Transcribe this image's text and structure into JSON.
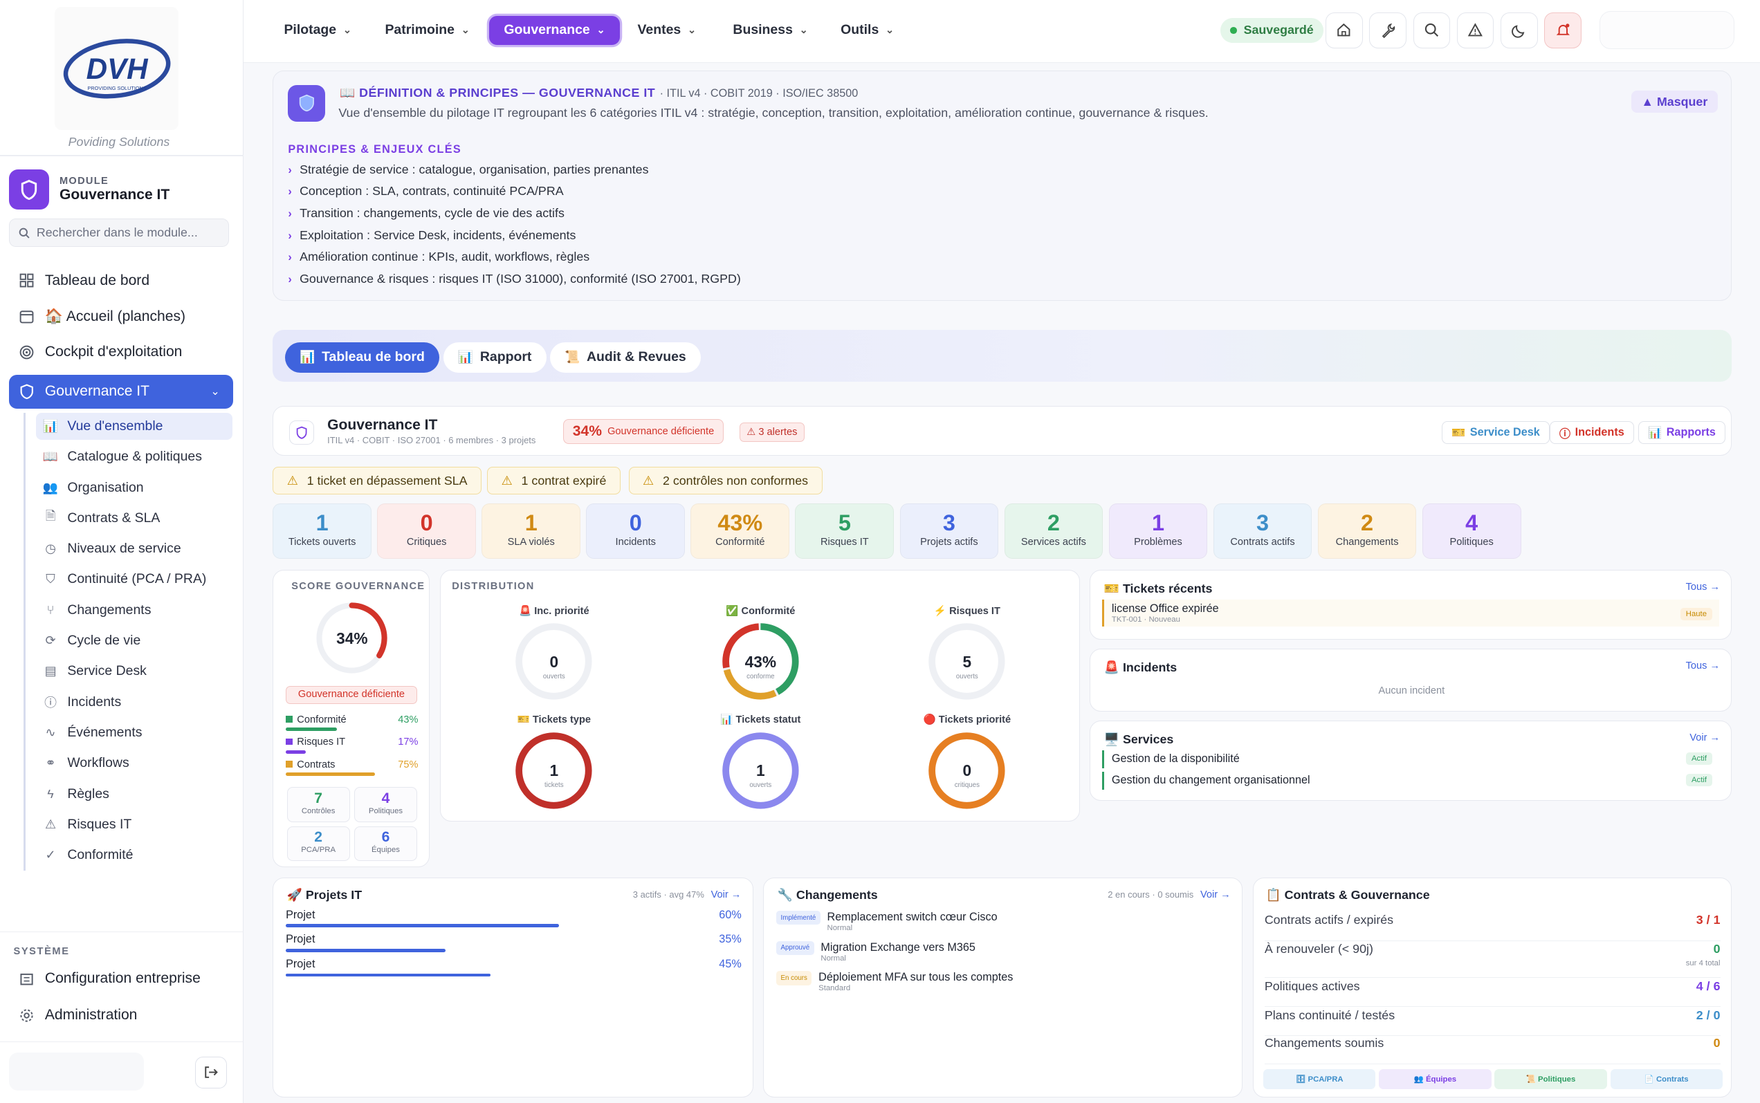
{
  "brand": {
    "logo_text": "DVH",
    "logo_sub": "PROVIDING SOLUTIONS",
    "tagline": "Poviding Solutions"
  },
  "module": {
    "label": "MODULE",
    "title": "Gouvernance IT",
    "search_placeholder": "Rechercher dans le module..."
  },
  "nav": [
    {
      "label": "Tableau de bord",
      "icon": "grid-icon"
    },
    {
      "label": "🏠 Accueil (planches)",
      "icon": "calendar-icon"
    },
    {
      "label": "Cockpit d'exploitation",
      "icon": "target-icon"
    },
    {
      "label": "Gouvernance IT",
      "icon": "shield-icon"
    }
  ],
  "subnav": [
    {
      "label": "Vue d'ensemble",
      "icon": "chart-icon"
    },
    {
      "label": "Catalogue & politiques",
      "icon": "book-icon"
    },
    {
      "label": "Organisation",
      "icon": "users-icon"
    },
    {
      "label": "Contrats & SLA",
      "icon": "file-icon"
    },
    {
      "label": "Niveaux de service",
      "icon": "clock-icon"
    },
    {
      "label": "Continuité (PCA / PRA)",
      "icon": "shield-check-icon"
    },
    {
      "label": "Changements",
      "icon": "git-icon"
    },
    {
      "label": "Cycle de vie",
      "icon": "refresh-icon"
    },
    {
      "label": "Service Desk",
      "icon": "ticket-icon"
    },
    {
      "label": "Incidents",
      "icon": "alert-circle-icon"
    },
    {
      "label": "Événements",
      "icon": "activity-icon"
    },
    {
      "label": "Workflows",
      "icon": "workflow-icon"
    },
    {
      "label": "Règles",
      "icon": "bolt-icon"
    },
    {
      "label": "Risques IT",
      "icon": "warning-icon"
    },
    {
      "label": "Conformité",
      "icon": "check-circle-icon"
    }
  ],
  "system": {
    "label": "SYSTÈME",
    "items": [
      {
        "label": "Configuration entreprise"
      },
      {
        "label": "Administration"
      }
    ]
  },
  "topnav": [
    {
      "label": "Pilotage"
    },
    {
      "label": "Patrimoine"
    },
    {
      "label": "Gouvernance"
    },
    {
      "label": "Ventes"
    },
    {
      "label": "Business"
    },
    {
      "label": "Outils"
    }
  ],
  "saved_label": "Sauvegardé",
  "definition": {
    "title": "📖 DÉFINITION & PRINCIPES — GOUVERNANCE IT",
    "standards": "· ITIL v4 · COBIT 2019 · ISO/IEC 38500",
    "description": "Vue d'ensemble du pilotage IT regroupant les 6 catégories ITIL v4 : stratégie, conception, transition, exploitation, amélioration continue, gouvernance & risques.",
    "hide_label": "▲ Masquer",
    "principles_label": "PRINCIPES & ENJEUX CLÉS",
    "principles": [
      "Stratégie de service : catalogue, organisation, parties prenantes",
      "Conception : SLA, contrats, continuité PCA/PRA",
      "Transition : changements, cycle de vie des actifs",
      "Exploitation : Service Desk, incidents, événements",
      "Amélioration continue : KPIs, audit, workflows, règles",
      "Gouvernance & risques : risques IT (ISO 31000), conformité (ISO 27001, RGPD)"
    ]
  },
  "tabs": [
    {
      "label": "Tableau de bord",
      "emoji": "📊"
    },
    {
      "label": "Rapport",
      "emoji": "📊"
    },
    {
      "label": "Audit & Revues",
      "emoji": "📜"
    }
  ],
  "header": {
    "title": "Gouvernance IT",
    "subtitle": "ITIL v4 · COBIT · ISO 27001 · 6 membres · 3 projets",
    "score": "34%",
    "score_label": "Gouvernance déficiente",
    "alerts": "⚠ 3 alertes",
    "buttons": [
      {
        "label": "Service Desk",
        "icon": "ticket-icon"
      },
      {
        "label": "Incidents",
        "icon": "alert-circle-icon"
      },
      {
        "label": "Rapports",
        "icon": "chart-icon"
      }
    ]
  },
  "warnings": [
    "1 ticket en dépassement SLA",
    "1 contrat expiré",
    "2 contrôles non conformes"
  ],
  "kpis": [
    {
      "value": "1",
      "label": "Tickets ouverts",
      "color": "#3d8ec9",
      "bg": "#eaf3fb"
    },
    {
      "value": "0",
      "label": "Critiques",
      "color": "#d2342a",
      "bg": "#fdeceb"
    },
    {
      "value": "1",
      "label": "SLA violés",
      "color": "#d08a14",
      "bg": "#fdf3e2"
    },
    {
      "value": "0",
      "label": "Incidents",
      "color": "#3f63dd",
      "bg": "#ebeffc"
    },
    {
      "value": "43%",
      "label": "Conformité",
      "color": "#d08a14",
      "bg": "#fdf3e2"
    },
    {
      "value": "5",
      "label": "Risques IT",
      "color": "#2e9e63",
      "bg": "#e6f5ec"
    },
    {
      "value": "3",
      "label": "Projets actifs",
      "color": "#3f63dd",
      "bg": "#ebeffc"
    },
    {
      "value": "2",
      "label": "Services actifs",
      "color": "#2e9e63",
      "bg": "#e6f5ec"
    },
    {
      "value": "1",
      "label": "Problèmes",
      "color": "#7b3fe4",
      "bg": "#f0eafc"
    },
    {
      "value": "3",
      "label": "Contrats actifs",
      "color": "#3d8ec9",
      "bg": "#eaf3fb"
    },
    {
      "value": "2",
      "label": "Changements",
      "color": "#d08a14",
      "bg": "#fdf3e2"
    },
    {
      "value": "4",
      "label": "Politiques",
      "color": "#7b3fe4",
      "bg": "#f0eafc"
    }
  ],
  "score_card": {
    "label": "SCORE GOUVERNANCE",
    "value": "34%",
    "score": 34,
    "status": "Gouvernance déficiente",
    "legend": [
      {
        "label": "Conformité",
        "value": "43%",
        "pct": 43,
        "color": "#2e9e63"
      },
      {
        "label": "Risques IT",
        "value": "17%",
        "pct": 17,
        "color": "#7b3fe4"
      },
      {
        "label": "Contrats",
        "value": "75%",
        "pct": 75,
        "color": "#e0a02a"
      }
    ],
    "minis": [
      {
        "value": "7",
        "label": "Contrôles",
        "color": "#2e9e63"
      },
      {
        "value": "4",
        "label": "Politiques",
        "color": "#7b3fe4"
      },
      {
        "value": "2",
        "label": "PCA/PRA",
        "color": "#3d8ec9"
      },
      {
        "value": "6",
        "label": "Équipes",
        "color": "#3f63dd"
      }
    ]
  },
  "distribution": {
    "label": "DISTRIBUTION",
    "charts": [
      {
        "title": "🚨 Inc. priorité",
        "value": "0",
        "sub": "ouverts",
        "segments": []
      },
      {
        "title": "✅ Conformité",
        "value": "43%",
        "sub": "conforme",
        "segments": [
          {
            "color": "#2e9e63",
            "pct": 43
          },
          {
            "color": "#e0a02a",
            "pct": 29
          },
          {
            "color": "#d2342a",
            "pct": 28
          }
        ]
      },
      {
        "title": "⚡ Risques IT",
        "value": "5",
        "sub": "ouverts",
        "segments": []
      },
      {
        "title": "🎫 Tickets type",
        "value": "1",
        "sub": "tickets",
        "segments": [
          {
            "color": "#c0302a",
            "pct": 100
          }
        ]
      },
      {
        "title": "📊 Tickets statut",
        "value": "1",
        "sub": "ouverts",
        "segments": [
          {
            "color": "#8b88ee",
            "pct": 100
          }
        ]
      },
      {
        "title": "🔴 Tickets priorité",
        "value": "0",
        "sub": "critiques",
        "segments": [
          {
            "color": "#e67f22",
            "pct": 100
          }
        ]
      }
    ]
  },
  "recent_tickets": {
    "title": "🎫 Tickets récents",
    "link": "Tous →",
    "items": [
      {
        "title": "license Office expirée",
        "meta": "TKT-001 · Nouveau",
        "badge": "Haute"
      }
    ]
  },
  "incidents": {
    "title": "🚨 Incidents",
    "link": "Tous →",
    "empty": "Aucun incident"
  },
  "services": {
    "title": "🖥️ Services",
    "link": "Voir →",
    "items": [
      {
        "label": "Gestion de la disponibilité",
        "badge": "Actif"
      },
      {
        "label": "Gestion du changement organisationnel",
        "badge": "Actif"
      }
    ]
  },
  "projects": {
    "title": "🚀 Projets IT",
    "meta": "3 actifs · avg 47%",
    "link": "Voir →",
    "items": [
      {
        "label": "Projet",
        "value": "60%",
        "pct": 60
      },
      {
        "label": "Projet",
        "value": "35%",
        "pct": 35
      },
      {
        "label": "Projet",
        "value": "45%",
        "pct": 45
      }
    ]
  },
  "changes": {
    "title": "🔧 Changements",
    "meta": "2 en cours · 0 soumis",
    "link": "Voir →",
    "items": [
      {
        "badge": "Implémenté",
        "title": "Remplacement switch cœur Cisco",
        "sub": "Normal",
        "bg": "#e8eefc",
        "fg": "#3f63dd"
      },
      {
        "badge": "Approuvé",
        "title": "Migration Exchange vers M365",
        "sub": "Normal",
        "bg": "#e8eefc",
        "fg": "#3f63dd"
      },
      {
        "badge": "En cours",
        "title": "Déploiement MFA sur tous les comptes",
        "sub": "Standard",
        "bg": "#fdf3e2",
        "fg": "#c68a00"
      }
    ]
  },
  "contracts": {
    "title": "📋 Contrats & Gouvernance",
    "rows": [
      {
        "label": "Contrats actifs / expirés",
        "value": "3 / 1",
        "color": "#d2342a",
        "note": ""
      },
      {
        "label": "À renouveler (< 90j)",
        "value": "0",
        "color": "#2e9e63",
        "note": "sur 4 total"
      },
      {
        "label": "Politiques actives",
        "value": "4 / 6",
        "color": "#7b3fe4",
        "note": ""
      },
      {
        "label": "Plans continuité / testés",
        "value": "2 / 0",
        "color": "#3d8ec9",
        "note": ""
      },
      {
        "label": "Changements soumis",
        "value": "0",
        "color": "#d08a14",
        "note": ""
      }
    ],
    "buttons": [
      {
        "label": "🗄 PCA/PRA",
        "bg": "#eaf3fb",
        "fg": "#3d8ec9"
      },
      {
        "label": "👥 Équipes",
        "bg": "#f0eafc",
        "fg": "#7b3fe4"
      },
      {
        "label": "📜 Politiques",
        "bg": "#e6f5ec",
        "fg": "#2e9e63"
      },
      {
        "label": "📄 Contrats",
        "bg": "#eaf3fb",
        "fg": "#3d8ec9"
      }
    ]
  }
}
